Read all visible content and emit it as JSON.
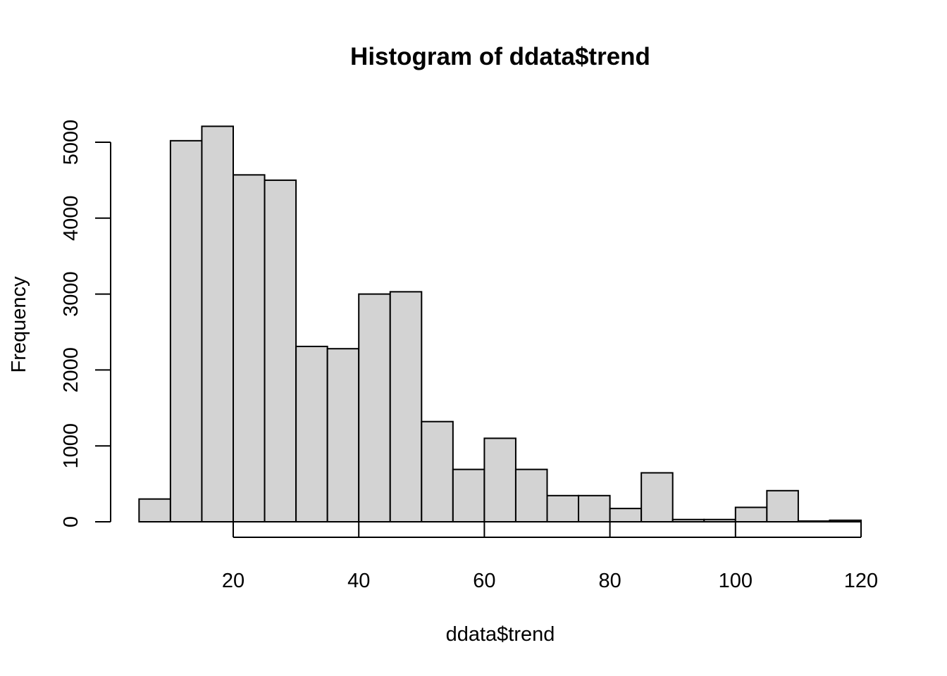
{
  "chart_data": {
    "type": "bar",
    "title": "Histogram of ddata$trend",
    "xlabel": "ddata$trend",
    "ylabel": "Frequency",
    "bin_width": 5,
    "bins": [
      {
        "start": 5,
        "end": 10,
        "count": 300
      },
      {
        "start": 10,
        "end": 15,
        "count": 5020
      },
      {
        "start": 15,
        "end": 20,
        "count": 5210
      },
      {
        "start": 20,
        "end": 25,
        "count": 4570
      },
      {
        "start": 25,
        "end": 30,
        "count": 4500
      },
      {
        "start": 30,
        "end": 35,
        "count": 2310
      },
      {
        "start": 35,
        "end": 40,
        "count": 2280
      },
      {
        "start": 40,
        "end": 45,
        "count": 3000
      },
      {
        "start": 45,
        "end": 50,
        "count": 3030
      },
      {
        "start": 50,
        "end": 55,
        "count": 1320
      },
      {
        "start": 55,
        "end": 60,
        "count": 690
      },
      {
        "start": 60,
        "end": 65,
        "count": 1100
      },
      {
        "start": 65,
        "end": 70,
        "count": 690
      },
      {
        "start": 70,
        "end": 75,
        "count": 345
      },
      {
        "start": 75,
        "end": 80,
        "count": 345
      },
      {
        "start": 80,
        "end": 85,
        "count": 175
      },
      {
        "start": 85,
        "end": 90,
        "count": 645
      },
      {
        "start": 90,
        "end": 95,
        "count": 30
      },
      {
        "start": 95,
        "end": 100,
        "count": 30
      },
      {
        "start": 100,
        "end": 105,
        "count": 190
      },
      {
        "start": 105,
        "end": 110,
        "count": 410
      },
      {
        "start": 110,
        "end": 115,
        "count": 10
      },
      {
        "start": 115,
        "end": 120,
        "count": 20
      }
    ],
    "xlim": [
      5,
      120
    ],
    "ylim": [
      0,
      5210
    ],
    "x_ticks": [
      20,
      40,
      60,
      80,
      100,
      120
    ],
    "x_tick_labels": [
      "20",
      "40",
      "60",
      "80",
      "100",
      "120"
    ],
    "y_ticks": [
      0,
      1000,
      2000,
      3000,
      4000,
      5000
    ],
    "y_tick_labels": [
      "0",
      "1000",
      "2000",
      "3000",
      "4000",
      "5000"
    ],
    "grid": false,
    "bar_fill": "#d3d3d3",
    "bar_stroke": "#000000"
  }
}
